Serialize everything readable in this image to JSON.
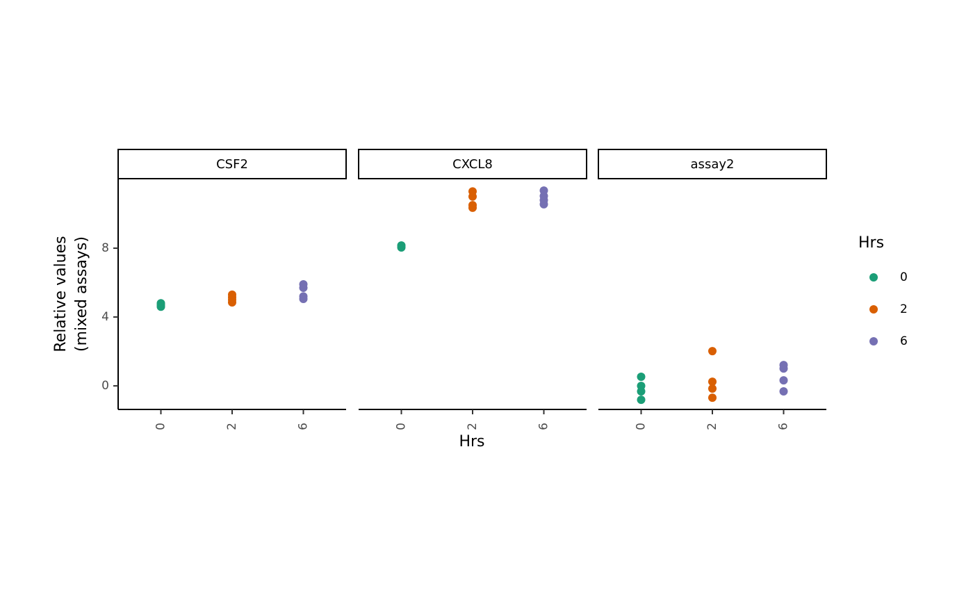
{
  "chart_data": {
    "type": "strip",
    "xlabel": "Hrs",
    "ylabel": [
      "Relative values",
      "(mixed assays)"
    ],
    "ylim": [
      -1.37,
      12.0
    ],
    "yticks": [
      0,
      4,
      8
    ],
    "legend_title": "Hrs",
    "groups": [
      {
        "name": "0",
        "color": "#1b9e77"
      },
      {
        "name": "2",
        "color": "#d95f02"
      },
      {
        "name": "6",
        "color": "#7570b3"
      }
    ],
    "facets": [
      {
        "title": "CSF2",
        "categories": [
          "0",
          "2",
          "6"
        ],
        "values": [
          [
            4.6,
            4.7,
            4.8
          ],
          [
            4.85,
            5.0,
            5.15,
            5.3
          ],
          [
            5.05,
            5.2,
            5.7,
            5.9
          ]
        ]
      },
      {
        "title": "CXCL8",
        "categories": [
          "0",
          "2",
          "6"
        ],
        "values": [
          [
            8.04,
            8.16
          ],
          [
            10.35,
            10.5,
            11.0,
            11.3
          ],
          [
            10.55,
            10.79,
            11.03,
            11.35
          ]
        ]
      },
      {
        "title": "assay2",
        "categories": [
          "0",
          "2",
          "6"
        ],
        "values": [
          [
            -0.81,
            -0.32,
            0,
            0.53
          ],
          [
            -0.69,
            -0.16,
            0.24,
            2.02
          ],
          [
            -0.32,
            0.32,
            1.01,
            1.21
          ]
        ]
      }
    ]
  }
}
